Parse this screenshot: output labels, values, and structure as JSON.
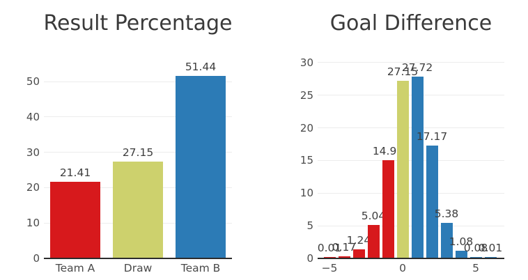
{
  "colors": {
    "red": "#d7191c",
    "khaki": "#cdd16d",
    "blue": "#2c7bb6",
    "grid": "#ececec",
    "axis": "#2c2c2c",
    "title_text": "#3a3a3a",
    "tick_text": "#4a4a4a",
    "label_text": "#3d3d3d",
    "background": "#ffffff"
  },
  "chart_data": [
    {
      "type": "bar",
      "title": "Result Percentage",
      "xlabel": "",
      "ylabel": "",
      "categories": [
        "Team A",
        "Draw",
        "Team B"
      ],
      "values": [
        21.41,
        27.15,
        51.44
      ],
      "bar_labels": [
        "21.41",
        "27.15",
        "51.44"
      ],
      "bar_colors": [
        "#d7191c",
        "#cdd16d",
        "#2c7bb6"
      ],
      "y_ticks": [
        0,
        10,
        20,
        30,
        40,
        50
      ],
      "ylim": [
        0,
        57.5
      ],
      "grid": true,
      "legend": "none"
    },
    {
      "type": "bar",
      "title": "Goal Difference",
      "xlabel": "",
      "ylabel": "",
      "x": [
        -5,
        -4,
        -3,
        -2,
        -1,
        0,
        1,
        2,
        3,
        4,
        5,
        6
      ],
      "values": [
        0.01,
        0.17,
        1.24,
        5.04,
        14.95,
        27.15,
        27.72,
        17.17,
        5.38,
        1.08,
        0.08,
        0.01
      ],
      "bar_labels": [
        "0.01",
        "0.17",
        "1.24",
        "5.04",
        "14.95",
        "27.15",
        "27.72",
        "17.17",
        "5.38",
        "1.08",
        "0.08",
        "0.01"
      ],
      "bar_colors": [
        "#d7191c",
        "#d7191c",
        "#d7191c",
        "#d7191c",
        "#d7191c",
        "#cdd16d",
        "#2c7bb6",
        "#2c7bb6",
        "#2c7bb6",
        "#2c7bb6",
        "#2c7bb6",
        "#2c7bb6"
      ],
      "x_ticks": [
        {
          "value": -5,
          "label": "−5"
        },
        {
          "value": 0,
          "label": "0"
        },
        {
          "value": 5,
          "label": "5"
        }
      ],
      "y_ticks": [
        0,
        5,
        10,
        15,
        20,
        25,
        30
      ],
      "ylim": [
        0,
        30.2
      ],
      "xlim": [
        -5.8,
        6.9
      ],
      "grid": true,
      "legend": "none"
    }
  ]
}
